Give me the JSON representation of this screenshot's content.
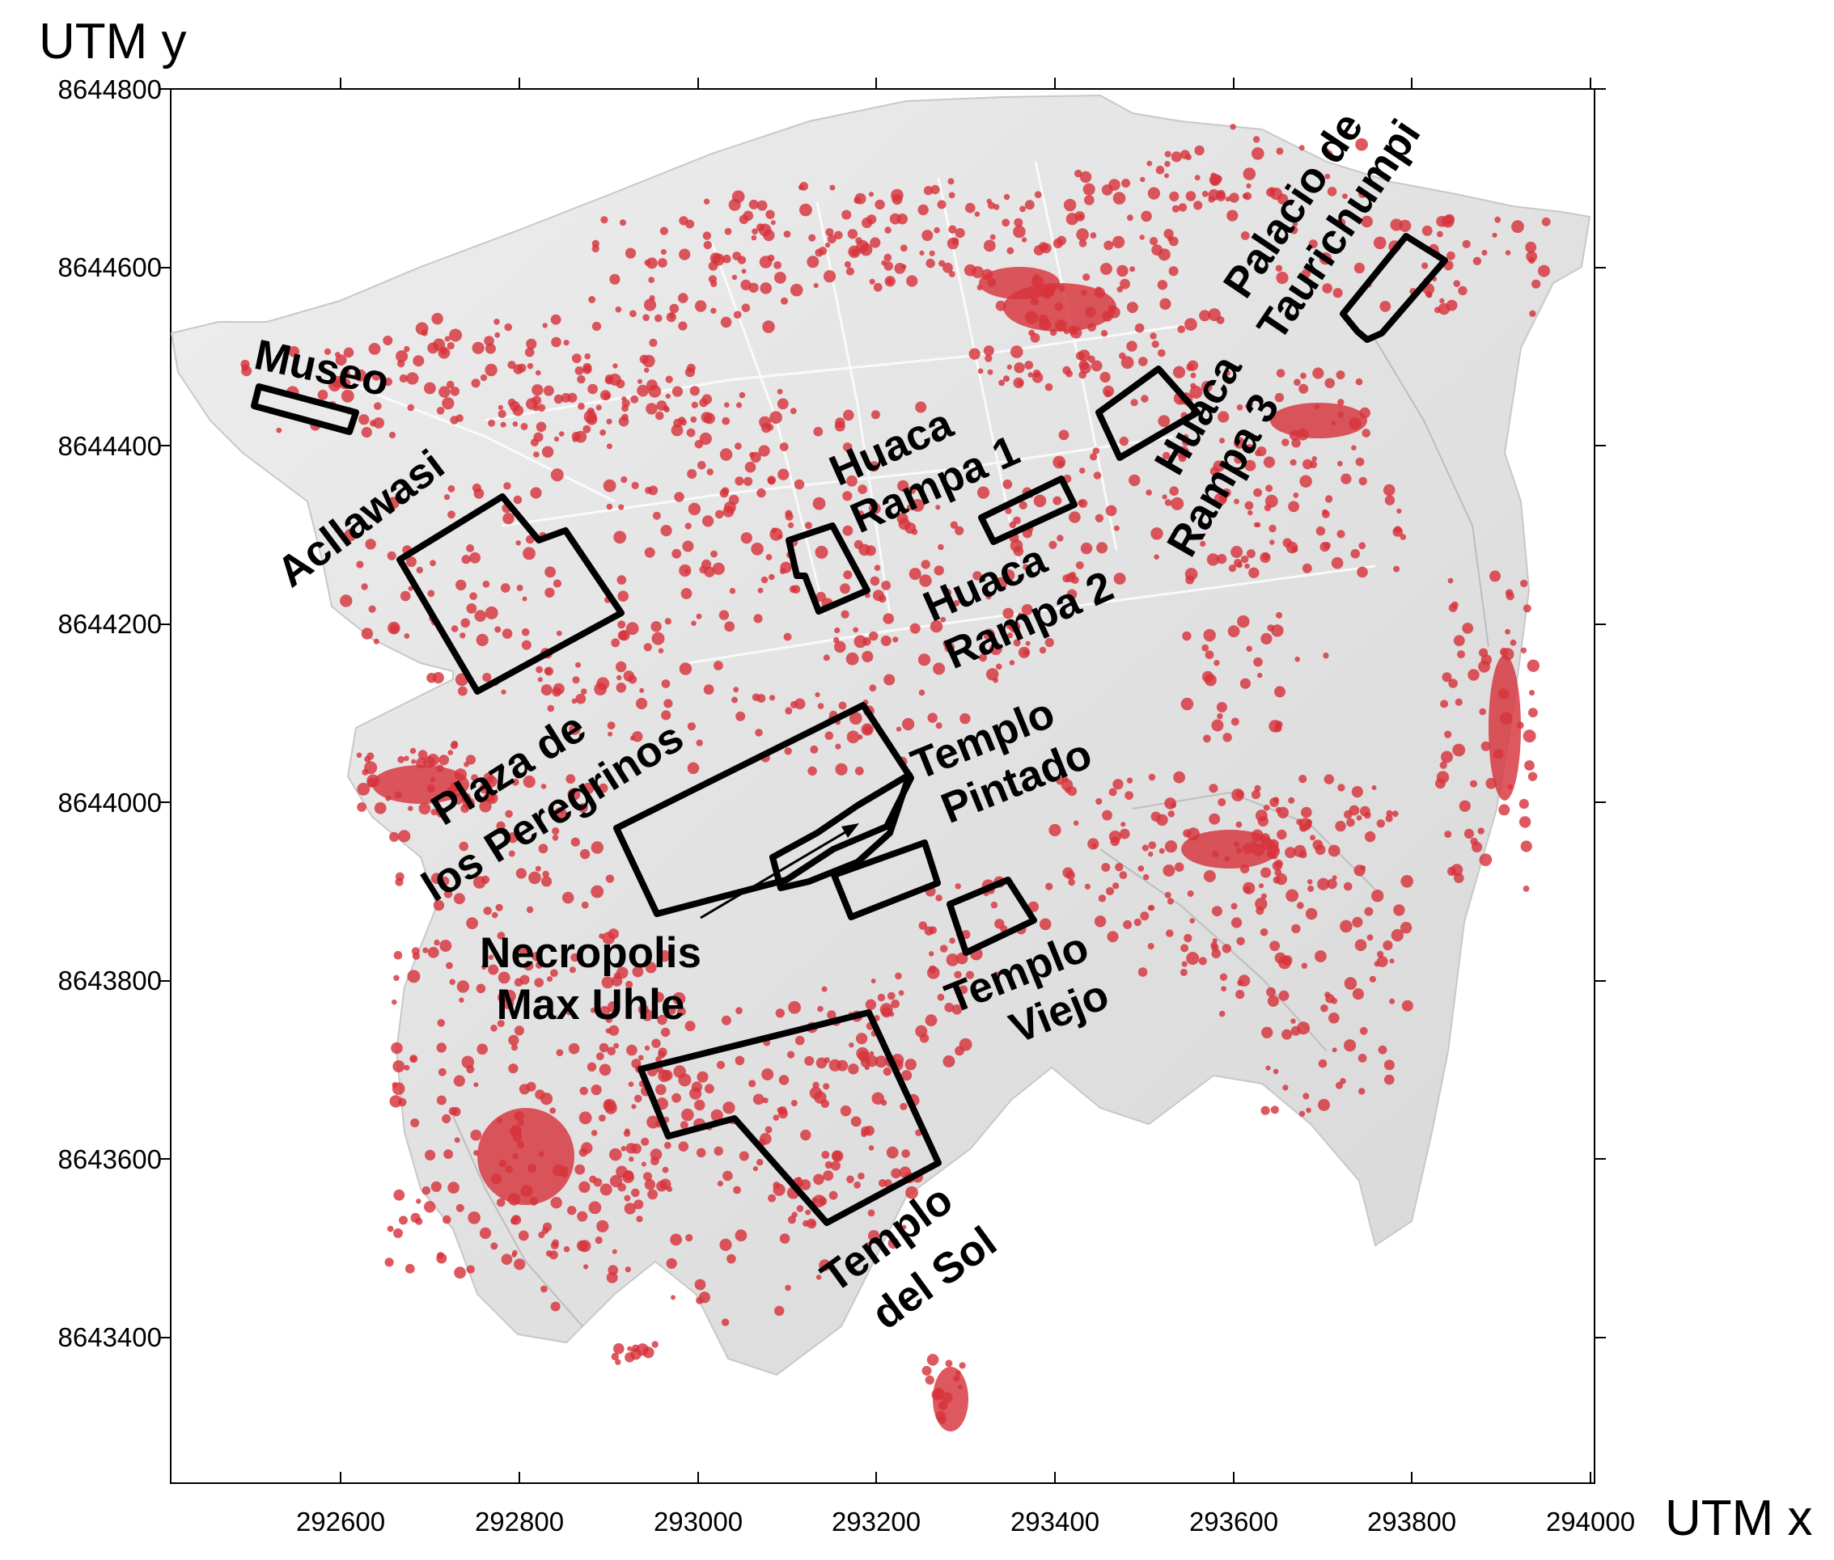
{
  "axes": {
    "x_title": "UTM x",
    "y_title": "UTM y",
    "x_ticks": [
      "292600",
      "292800",
      "293000",
      "293200",
      "293400",
      "293600",
      "293800",
      "294000"
    ],
    "y_ticks": [
      "8644800",
      "8644600",
      "8644400",
      "8644200",
      "8644000",
      "8643800",
      "8643600",
      "8643400"
    ]
  },
  "sites": {
    "museo": "Museo",
    "acllawasi": "Acllawasi",
    "huaca_rampa_1": [
      "Huaca",
      "Rampa 1"
    ],
    "huaca_rampa_2": [
      "Huaca",
      "Rampa 2"
    ],
    "huaca_rampa_3": [
      "Huaca",
      "Rampa 3"
    ],
    "palacio": [
      "Palacio de",
      "Taurichumpi"
    ],
    "plaza": [
      "Plaza de",
      "los Peregrinos"
    ],
    "necropolis": [
      "Necropolis",
      "Max Uhle"
    ],
    "templo_pintado": [
      "Templo",
      "Pintado"
    ],
    "templo_viejo": [
      "Templo",
      "Viejo"
    ],
    "templo_sol": [
      "Templo",
      "del Sol"
    ]
  },
  "colors": {
    "hillshade": "#e0e0e0",
    "looting_pits": "#d7333c",
    "outline": "#000000"
  }
}
